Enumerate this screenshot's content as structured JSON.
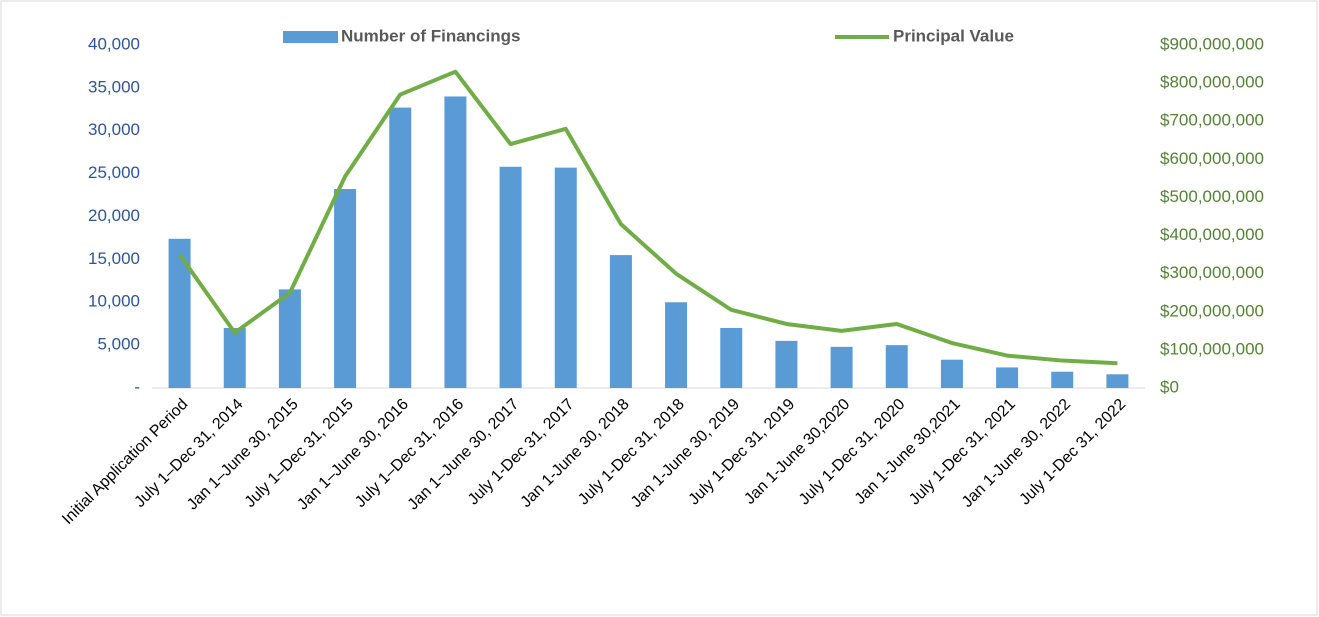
{
  "chart_data": {
    "type": "bar-line",
    "categories": [
      "Initial Application Period",
      "July 1–Dec 31, 2014",
      "Jan 1–June 30, 2015",
      "July 1–Dec 31, 2015",
      "Jan 1–June 30, 2016",
      "July 1–Dec 31, 2016",
      "Jan 1–June 30, 2017",
      "July 1-Dec 31, 2017",
      "Jan 1-June 30, 2018",
      "July 1-Dec 31, 2018",
      "Jan 1-June 30, 2019",
      "July 1-Dec 31, 2019",
      "Jan 1-June 30,2020",
      "July 1-Dec 31, 2020",
      "Jan 1-June 30,2021",
      "July 1-Dec 31, 2021",
      "Jan 1-June 30, 2022",
      "July 1-Dec 31, 2022"
    ],
    "series": [
      {
        "name": "Number of Financings",
        "type": "bar",
        "color": "#5b9bd5",
        "values": [
          17400,
          7000,
          11500,
          23200,
          32700,
          34000,
          25800,
          25700,
          15500,
          10000,
          7000,
          5500,
          4800,
          5000,
          3300,
          2400,
          1900,
          1600
        ]
      },
      {
        "name": "Principal Value",
        "type": "line",
        "axis": "y2",
        "color": "#70ad47",
        "values": [
          350000000,
          145000000,
          250000000,
          555000000,
          770000000,
          830000000,
          640000000,
          680000000,
          430000000,
          300000000,
          205000000,
          168000000,
          150000000,
          168000000,
          118000000,
          85000000,
          72000000,
          65000000
        ]
      }
    ],
    "ylim": [
      0,
      40000
    ],
    "yticks": [
      {
        "value": 0,
        "label": "-"
      },
      {
        "value": 5000,
        "label": "5,000"
      },
      {
        "value": 10000,
        "label": "10,000"
      },
      {
        "value": 15000,
        "label": "15,000"
      },
      {
        "value": 20000,
        "label": "20,000"
      },
      {
        "value": 25000,
        "label": "25,000"
      },
      {
        "value": 30000,
        "label": "30,000"
      },
      {
        "value": 35000,
        "label": "35,000"
      },
      {
        "value": 40000,
        "label": "40,000"
      }
    ],
    "y2lim": [
      0,
      900000000
    ],
    "y2ticks": [
      {
        "value": 0,
        "label": "$0"
      },
      {
        "value": 100000000,
        "label": "$100,000,000"
      },
      {
        "value": 200000000,
        "label": "$200,000,000"
      },
      {
        "value": 300000000,
        "label": "$300,000,000"
      },
      {
        "value": 400000000,
        "label": "$400,000,000"
      },
      {
        "value": 500000000,
        "label": "$500,000,000"
      },
      {
        "value": 600000000,
        "label": "$600,000,000"
      },
      {
        "value": 700000000,
        "label": "$700,000,000"
      },
      {
        "value": 800000000,
        "label": "$800,000,000"
      },
      {
        "value": 900000000,
        "label": "$900,000,000"
      }
    ],
    "legend": "top",
    "grid": false
  }
}
